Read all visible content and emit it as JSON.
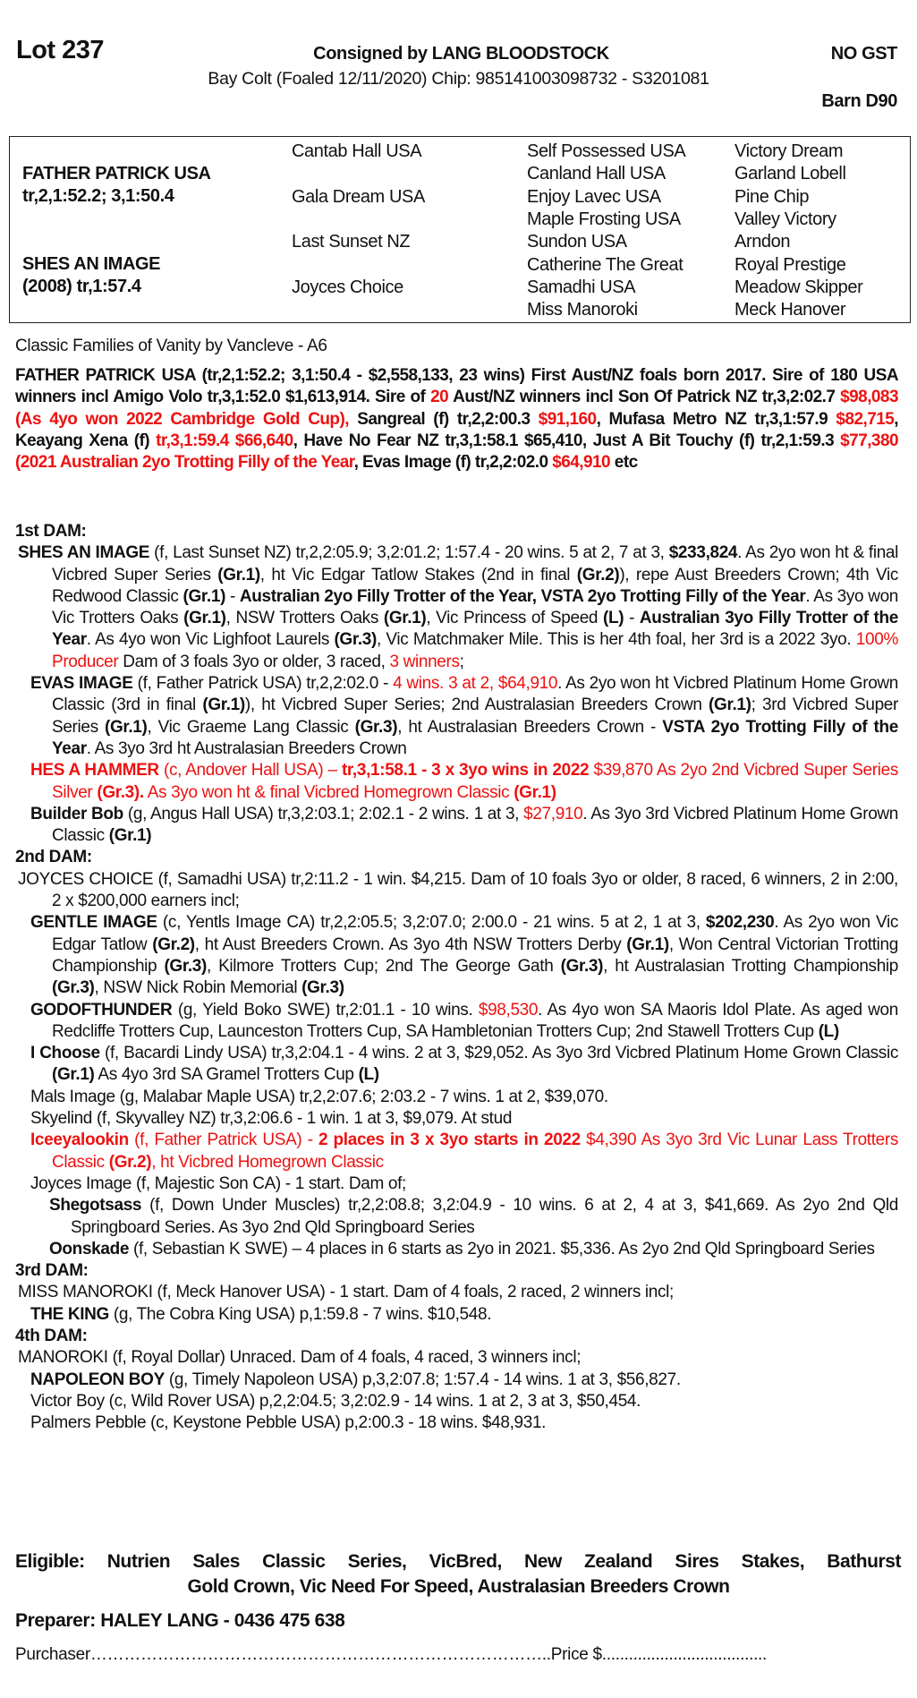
{
  "header": {
    "lot": "Lot 237",
    "consignor": "Consigned by LANG BLOODSTOCK",
    "gst": "NO GST",
    "description": "Bay Colt (Foaled 12/11/2020) Chip: 985141003098732 - S3201081",
    "barn": "Barn D90"
  },
  "pedigree": {
    "sire_name": "FATHER PATRICK USA",
    "sire_record": "tr,2,1:52.2; 3,1:50.4",
    "dam_name": "SHES AN IMAGE",
    "dam_record": "(2008) tr,1:57.4",
    "gen2": [
      "Cantab Hall USA",
      "Gala Dream USA",
      "Last Sunset NZ",
      "Joyces Choice"
    ],
    "gen3": [
      "Self Possessed USA",
      "Canland Hall USA",
      "Enjoy Lavec USA",
      "Maple Frosting USA",
      "Sundon USA",
      "Catherine The Great",
      "Samadhi USA",
      "Miss Manoroki"
    ],
    "gen4": [
      "Victory Dream",
      "Garland Lobell",
      "Pine Chip",
      "Valley Victory",
      "Arndon",
      "Royal Prestige",
      "Meadow Skipper",
      "Meck Hanover"
    ]
  },
  "family": "Classic Families of Vanity by Vancleve - A6",
  "colors": {
    "highlight": "#ee1111",
    "text": "#111111"
  },
  "sire_paragraph": [
    [
      "FATHER PATRICK USA (tr,2,1:52.2; 3,1:50.4 - $2,558,133, 23 wins) First Aust/NZ foals born 2017. Sire of 180 USA winners incl Amigo Volo tr,3,1:52.0 $1,613,914. Sire of ",
      "b"
    ],
    [
      "20",
      "rb"
    ],
    [
      " Aust/NZ winners incl Son Of Patrick NZ tr,3,2:02.7 ",
      "b"
    ],
    [
      "$98,083 (As 4yo won 2022 Cambridge Gold Cup),",
      "rb"
    ],
    [
      " Sangreal (f) tr,2,2:00.3 ",
      "b"
    ],
    [
      "$91,160",
      "rb"
    ],
    [
      ", Mufasa Metro NZ tr,3,1:57.9 ",
      "b"
    ],
    [
      "$82,715",
      "rb"
    ],
    [
      ", Keayang Xena (f) ",
      "b"
    ],
    [
      "tr,3,1:59.4  $66,640",
      "rb"
    ],
    [
      ", Have No Fear NZ tr,3,1:58.1 $65,410, Just A Bit Touchy (f) tr,2,1:59.3 ",
      "b"
    ],
    [
      "$77,380 (2021 Australian 2yo Trotting Filly of the Year",
      "rb"
    ],
    [
      ", Evas Image (f) tr,2,2:02.0 ",
      "b"
    ],
    [
      "$64,910",
      "rb"
    ],
    [
      " etc",
      "b"
    ]
  ],
  "dams": [
    {
      "heading": "1st DAM:",
      "entries": [
        {
          "level": 0,
          "runs": [
            [
              "SHES AN IMAGE",
              "b"
            ],
            [
              " (f, Last Sunset NZ) tr,2,2:05.9; 3,2:01.2; 1:57.4 - 20 wins. 5 at 2, 7 at 3, ",
              ""
            ],
            [
              "$233,824",
              "b"
            ],
            [
              ". As 2yo won ht & final Vicbred Super Series ",
              ""
            ],
            [
              "(Gr.1)",
              "b"
            ],
            [
              ", ht Vic Edgar Tatlow Stakes (2nd in final ",
              ""
            ],
            [
              "(Gr.2)",
              "b"
            ],
            [
              "), repe Aust Breeders Crown; 4th Vic Redwood Classic ",
              ""
            ],
            [
              "(Gr.1)",
              "b"
            ],
            [
              " - ",
              ""
            ],
            [
              "Australian 2yo Filly Trotter of the Year, VSTA 2yo Trotting Filly of the Year",
              "b"
            ],
            [
              ". As 3yo won Vic Trotters Oaks ",
              ""
            ],
            [
              "(Gr.1)",
              "b"
            ],
            [
              ", NSW Trotters Oaks ",
              ""
            ],
            [
              "(Gr.1)",
              "b"
            ],
            [
              ", Vic Princess of Speed ",
              ""
            ],
            [
              "(L)",
              "b"
            ],
            [
              " - ",
              ""
            ],
            [
              "Australian 3yo Filly Trotter of the Year",
              "b"
            ],
            [
              ". As 4yo won Vic Lighfoot Laurels ",
              ""
            ],
            [
              "(Gr.3)",
              "b"
            ],
            [
              ", Vic Matchmaker Mile. This is her 4th foal, her 3rd is a 2022 3yo. ",
              ""
            ],
            [
              "100% Producer",
              "r"
            ],
            [
              " Dam of 3 foals 3yo or older, 3 raced, ",
              ""
            ],
            [
              "3 winners",
              "r"
            ],
            [
              ";",
              ""
            ]
          ]
        },
        {
          "level": 1,
          "runs": [
            [
              "EVAS IMAGE",
              "b"
            ],
            [
              " (f, Father Patrick USA) tr,2,2:02.0 - ",
              ""
            ],
            [
              "4 wins. 3 at 2, $64,910",
              "r"
            ],
            [
              ". As 2yo won ht Vicbred Platinum Home Grown Classic (3rd in final ",
              ""
            ],
            [
              "(Gr.1)",
              "b"
            ],
            [
              "), ht Vicbred Super Series; 2nd Australasian Breeders Crown ",
              ""
            ],
            [
              "(Gr.1)",
              "b"
            ],
            [
              "; 3rd Vicbred Super Series ",
              ""
            ],
            [
              "(Gr.1)",
              "b"
            ],
            [
              ", Vic Graeme Lang Classic ",
              ""
            ],
            [
              "(Gr.3)",
              "b"
            ],
            [
              ", ht Australasian Breeders Crown - ",
              ""
            ],
            [
              "VSTA 2yo Trotting Filly of the Year",
              "b"
            ],
            [
              ". As 3yo 3rd ht Australasian Breeders Crown",
              ""
            ]
          ]
        },
        {
          "level": 1,
          "runs": [
            [
              "HES A HAMMER",
              "rb"
            ],
            [
              " (c, Andover Hall USA) – ",
              "r"
            ],
            [
              "tr,3,1:58.1 - 3 x 3yo wins in 2022",
              "rb"
            ],
            [
              " $39,870 As 2yo 2nd Vicbred Super Series Silver ",
              "r"
            ],
            [
              "(Gr.3).",
              "rb"
            ],
            [
              " As 3yo won ht & final Vicbred Homegrown Classic ",
              "r"
            ],
            [
              "(Gr.1)",
              "rb"
            ]
          ]
        },
        {
          "level": 1,
          "runs": [
            [
              "Builder Bob",
              "b"
            ],
            [
              " (g, Angus Hall USA) tr,3,2:03.1; 2:02.1 - 2 wins. 1 at 3, ",
              ""
            ],
            [
              "$27,910",
              "r"
            ],
            [
              ". As 3yo 3rd Vicbred Platinum Home Grown Classic ",
              ""
            ],
            [
              "(Gr.1)",
              "b"
            ]
          ]
        }
      ]
    },
    {
      "heading": "2nd DAM:",
      "entries": [
        {
          "level": 0,
          "runs": [
            [
              "JOYCES CHOICE (f, Samadhi USA) tr,2:11.2 - 1 win. $4,215. Dam of 10 foals 3yo or older, 8 raced, 6 winners, 2 in 2:00, 2 x $200,000 earners incl;",
              ""
            ]
          ]
        },
        {
          "level": 1,
          "runs": [
            [
              "GENTLE IMAGE",
              "b"
            ],
            [
              " (c, Yentls Image CA) tr,2,2:05.5; 3,2:07.0; 2:00.0 - 21 wins. 5 at 2, 1 at 3, ",
              ""
            ],
            [
              "$202,230",
              "b"
            ],
            [
              ". As 2yo won Vic Edgar Tatlow ",
              ""
            ],
            [
              "(Gr.2)",
              "b"
            ],
            [
              ", ht Aust Breeders Crown. As 3yo 4th NSW Trotters Derby ",
              ""
            ],
            [
              "(Gr.1)",
              "b"
            ],
            [
              ", Won Central Victorian Trotting Championship ",
              ""
            ],
            [
              "(Gr.3)",
              "b"
            ],
            [
              ", Kilmore Trotters Cup; 2nd The George Gath ",
              ""
            ],
            [
              "(Gr.3)",
              "b"
            ],
            [
              ", ht Australasian Trotting Championship ",
              ""
            ],
            [
              "(Gr.3)",
              "b"
            ],
            [
              ", NSW Nick Robin Memorial ",
              ""
            ],
            [
              "(Gr.3)",
              "b"
            ]
          ]
        },
        {
          "level": 1,
          "runs": [
            [
              "GODOFTHUNDER",
              "b"
            ],
            [
              " (g, Yield Boko SWE) tr,2:01.1 - 10 wins. ",
              ""
            ],
            [
              "$98,530",
              "r"
            ],
            [
              ". As 4yo won SA Maoris Idol Plate. As aged won Redcliffe Trotters Cup, Launceston Trotters Cup, SA Hambletonian Trotters Cup; 2nd Stawell Trotters Cup ",
              ""
            ],
            [
              "(L)",
              "b"
            ]
          ]
        },
        {
          "level": 1,
          "runs": [
            [
              "I Choose",
              "b"
            ],
            [
              " (f, Bacardi Lindy USA) tr,3,2:04.1 - 4 wins. 2 at 3, $29,052. As 3yo 3rd Vicbred Platinum Home Grown Classic ",
              ""
            ],
            [
              "(Gr.1)",
              "b"
            ],
            [
              " As 4yo 3rd SA Gramel Trotters Cup ",
              ""
            ],
            [
              "(L)",
              "b"
            ]
          ]
        },
        {
          "level": 1,
          "runs": [
            [
              "Mals Image (g, Malabar Maple USA) tr,2,2:07.6; 2:03.2 - 7 wins. 1 at 2, $39,070.",
              ""
            ]
          ]
        },
        {
          "level": 1,
          "runs": [
            [
              "Skyelind (f, Skyvalley NZ) tr,3,2:06.6 - 1 win. 1 at 3, $9,079. At stud",
              ""
            ]
          ]
        },
        {
          "level": 1,
          "runs": [
            [
              "Iceeyalookin",
              "rb"
            ],
            [
              " (f, Father Patrick USA) - ",
              "r"
            ],
            [
              "2 places in 3 x 3yo starts in 2022",
              "rb"
            ],
            [
              " $4,390 As 3yo 3rd Vic Lunar Lass Trotters Classic ",
              "r"
            ],
            [
              "(Gr.2)",
              "rb"
            ],
            [
              ", ht Vicbred Homegrown Classic",
              "r"
            ]
          ]
        },
        {
          "level": 1,
          "runs": [
            [
              "Joyces Image (f, Majestic Son CA) - 1 start. Dam of;",
              ""
            ]
          ]
        },
        {
          "level": 2,
          "runs": [
            [
              "Shegotsass",
              "b"
            ],
            [
              " (f, Down Under Muscles) tr,2,2:08.8; 3,2:04.9 - 10 wins. 6 at 2, 4 at 3, $41,669. As 2yo 2nd Qld Springboard Series. As 3yo 2nd Qld Springboard Series",
              ""
            ]
          ]
        },
        {
          "level": 2,
          "runs": [
            [
              "Oonskade",
              "b"
            ],
            [
              " (f, Sebastian K SWE) – 4 places in 6 starts as 2yo in 2021. $5,336. As 2yo 2nd Qld Springboard Series",
              ""
            ]
          ]
        }
      ]
    },
    {
      "heading": "3rd DAM:",
      "entries": [
        {
          "level": 0,
          "runs": [
            [
              "MISS MANOROKI (f, Meck Hanover USA) - 1 start. Dam of 4 foals, 2 raced, 2 winners incl;",
              ""
            ]
          ]
        },
        {
          "level": 1,
          "runs": [
            [
              "THE KING",
              "b"
            ],
            [
              " (g, The Cobra King USA) p,1:59.8 - 7 wins. $10,548.",
              ""
            ]
          ]
        }
      ]
    },
    {
      "heading": "4th DAM:",
      "entries": [
        {
          "level": 0,
          "runs": [
            [
              "MANOROKI (f, Royal Dollar) Unraced. Dam of 4 foals, 4 raced, 3 winners incl;",
              ""
            ]
          ]
        },
        {
          "level": 1,
          "runs": [
            [
              "NAPOLEON BOY",
              "b"
            ],
            [
              " (g, Timely Napoleon USA) p,3,2:07.8; 1:57.4 - 14 wins. 1 at 3, $56,827.",
              ""
            ]
          ]
        },
        {
          "level": 1,
          "runs": [
            [
              "Victor Boy (c, Wild Rover USA) p,2,2:04.5; 3,2:02.9 - 14 wins. 1 at 2, 3 at 3, $50,454.",
              ""
            ]
          ]
        },
        {
          "level": 1,
          "runs": [
            [
              "Palmers Pebble (c, Keystone Pebble USA) p,2:00.3 - 18 wins. $48,931.",
              ""
            ]
          ]
        }
      ]
    }
  ],
  "eligible": [
    "Eligible: Nutrien Sales Classic Series, VicBred, New Zealand Sires Stakes, Bathurst",
    "Gold Crown, Vic Need For Speed, Australasian Breeders Crown"
  ],
  "preparer": "Preparer: HALEY LANG - 0436 475 638",
  "purchaser": "Purchaser………………………………………………………………………..Price $....................................."
}
